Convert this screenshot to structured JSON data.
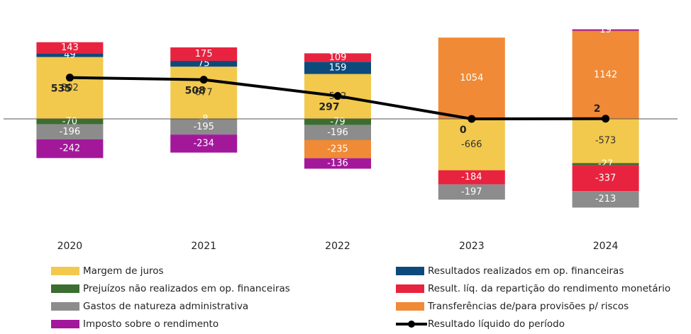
{
  "chart_data": {
    "type": "bar",
    "stacked": true,
    "categories": [
      "2020",
      "2021",
      "2022",
      "2023",
      "2024"
    ],
    "ylim": [
      -1500,
      1400
    ],
    "series": [
      {
        "name": "Margem de juros",
        "color": "#f2c94c",
        "values": [
          802,
          677,
          582,
          -666,
          -573
        ]
      },
      {
        "name": "Resultados realizados em op. financeiras",
        "color": "#0d4a7c",
        "values": [
          49,
          75,
          159,
          null,
          null
        ]
      },
      {
        "name": "Prejuízos não realizados em op. financeiras",
        "color": "#3b6e30",
        "values": [
          -70,
          -8,
          -79,
          null,
          -27
        ]
      },
      {
        "name": "Result. líq. da repartição do rendimento monetário",
        "color": "#e8233f",
        "values": [
          143,
          175,
          109,
          -184,
          -337
        ]
      },
      {
        "name": "Gastos de natureza administrativa",
        "color": "#8c8c8c",
        "values": [
          -196,
          -195,
          -196,
          -197,
          -213
        ]
      },
      {
        "name": "Transferências de/para provisões p/ riscos",
        "color": "#f08a36",
        "values": [
          null,
          null,
          -235,
          1054,
          1142
        ]
      },
      {
        "name": "Imposto sobre o rendimento",
        "color": "#a3189b",
        "values": [
          -242,
          -234,
          -136,
          null,
          19
        ]
      },
      {
        "name": "Resultado líquido do período",
        "type": "line",
        "color": "#000000",
        "values": [
          535,
          508,
          297,
          0,
          2
        ]
      }
    ]
  }
}
